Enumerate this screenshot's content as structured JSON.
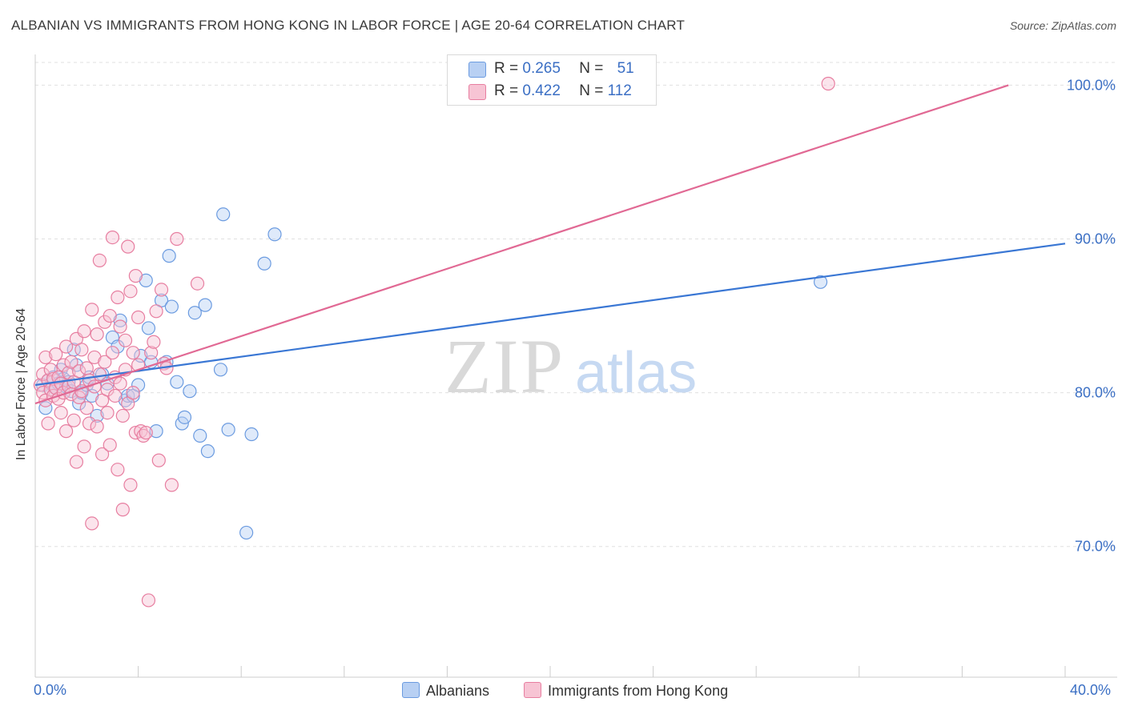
{
  "title": "ALBANIAN VS IMMIGRANTS FROM HONG KONG IN LABOR FORCE | AGE 20-64 CORRELATION CHART",
  "source": "Source: ZipAtlas.com",
  "watermark_zip": "ZIP",
  "watermark_atlas": "atlas",
  "legend": {
    "albanians": {
      "r_label": "R = ",
      "r": "0.265",
      "n_label": "N = ",
      "n": "51",
      "color": "#6b9be0",
      "fill": "#b8d0f3"
    },
    "hongkong": {
      "r_label": "R = ",
      "r": "0.422",
      "n_label": "N = ",
      "n": "112",
      "color": "#e77ea0",
      "fill": "#f7c4d4"
    }
  },
  "bottom_legend": {
    "albanians": "Albanians",
    "hongkong": "Immigrants from Hong Kong"
  },
  "chart_data": {
    "type": "scatter",
    "title": "ALBANIAN VS IMMIGRANTS FROM HONG KONG IN LABOR FORCE | AGE 20-64 CORRELATION CHART",
    "xlabel": "",
    "ylabel": "In Labor Force | Age 20-64",
    "xlim": [
      0,
      40
    ],
    "ylim": [
      61.5,
      102
    ],
    "x_tick_labels": [
      "0.0%",
      "40.0%"
    ],
    "y_ticks": [
      70,
      80,
      90,
      100
    ],
    "y_tick_labels": [
      "70.0%",
      "80.0%",
      "90.0%",
      "100.0%"
    ],
    "series": [
      {
        "name": "Albanians",
        "color": "#3a77d4",
        "trend": [
          [
            0,
            80.5
          ],
          [
            40,
            89.7
          ]
        ],
        "points": [
          [
            0.3,
            80.5
          ],
          [
            0.4,
            79.0
          ],
          [
            0.5,
            80.8
          ],
          [
            0.6,
            80.2
          ],
          [
            0.7,
            81.0
          ],
          [
            0.8,
            80.3
          ],
          [
            0.9,
            80.6
          ],
          [
            1.0,
            81.5
          ],
          [
            1.1,
            80.9
          ],
          [
            1.2,
            80.4
          ],
          [
            1.3,
            80.7
          ],
          [
            1.4,
            80.1
          ],
          [
            1.5,
            82.8
          ],
          [
            1.6,
            81.8
          ],
          [
            1.7,
            79.3
          ],
          [
            1.8,
            80.0
          ],
          [
            2.0,
            80.5
          ],
          [
            2.1,
            81.0
          ],
          [
            2.2,
            79.8
          ],
          [
            2.4,
            78.5
          ],
          [
            2.6,
            81.2
          ],
          [
            2.8,
            80.6
          ],
          [
            3.0,
            83.6
          ],
          [
            3.2,
            83.0
          ],
          [
            3.3,
            84.7
          ],
          [
            3.5,
            79.5
          ],
          [
            3.6,
            79.8
          ],
          [
            3.8,
            79.8
          ],
          [
            4.0,
            80.5
          ],
          [
            4.1,
            82.4
          ],
          [
            4.3,
            87.3
          ],
          [
            4.4,
            84.2
          ],
          [
            4.5,
            82.0
          ],
          [
            4.7,
            77.5
          ],
          [
            4.9,
            86.0
          ],
          [
            5.1,
            82.0
          ],
          [
            5.2,
            88.9
          ],
          [
            5.3,
            85.6
          ],
          [
            5.5,
            80.7
          ],
          [
            5.7,
            78.0
          ],
          [
            5.8,
            78.4
          ],
          [
            6.0,
            80.1
          ],
          [
            6.2,
            85.2
          ],
          [
            6.4,
            77.2
          ],
          [
            6.6,
            85.7
          ],
          [
            6.7,
            76.2
          ],
          [
            7.2,
            81.5
          ],
          [
            7.3,
            91.6
          ],
          [
            7.5,
            77.6
          ],
          [
            8.2,
            70.9
          ],
          [
            8.4,
            77.3
          ],
          [
            8.9,
            88.4
          ],
          [
            9.3,
            90.3
          ],
          [
            30.5,
            87.2
          ]
        ]
      },
      {
        "name": "Immigrants from Hong Kong",
        "color": "#e16994",
        "trend": [
          [
            0,
            79.3
          ],
          [
            37.8,
            100
          ]
        ],
        "points": [
          [
            0.2,
            80.5
          ],
          [
            0.3,
            80.0
          ],
          [
            0.3,
            81.2
          ],
          [
            0.4,
            79.5
          ],
          [
            0.4,
            82.3
          ],
          [
            0.5,
            80.8
          ],
          [
            0.5,
            78.0
          ],
          [
            0.6,
            81.5
          ],
          [
            0.6,
            80.2
          ],
          [
            0.7,
            79.8
          ],
          [
            0.7,
            80.9
          ],
          [
            0.8,
            82.5
          ],
          [
            0.8,
            80.3
          ],
          [
            0.9,
            81.0
          ],
          [
            0.9,
            79.6
          ],
          [
            1.0,
            80.6
          ],
          [
            1.0,
            78.7
          ],
          [
            1.1,
            81.8
          ],
          [
            1.1,
            80.0
          ],
          [
            1.2,
            77.5
          ],
          [
            1.2,
            83.0
          ],
          [
            1.3,
            80.4
          ],
          [
            1.3,
            81.3
          ],
          [
            1.4,
            79.9
          ],
          [
            1.4,
            82.0
          ],
          [
            1.5,
            80.7
          ],
          [
            1.5,
            78.2
          ],
          [
            1.6,
            83.5
          ],
          [
            1.6,
            75.5
          ],
          [
            1.7,
            81.4
          ],
          [
            1.7,
            79.7
          ],
          [
            1.8,
            82.8
          ],
          [
            1.8,
            80.1
          ],
          [
            1.9,
            76.5
          ],
          [
            1.9,
            84.0
          ],
          [
            2.0,
            81.6
          ],
          [
            2.0,
            79.0
          ],
          [
            2.1,
            80.8
          ],
          [
            2.1,
            78.0
          ],
          [
            2.2,
            85.4
          ],
          [
            2.2,
            71.5
          ],
          [
            2.3,
            82.3
          ],
          [
            2.3,
            80.4
          ],
          [
            2.4,
            83.8
          ],
          [
            2.4,
            77.8
          ],
          [
            2.5,
            88.6
          ],
          [
            2.5,
            81.2
          ],
          [
            2.6,
            79.5
          ],
          [
            2.6,
            76.0
          ],
          [
            2.7,
            84.6
          ],
          [
            2.7,
            82.0
          ],
          [
            2.8,
            80.2
          ],
          [
            2.8,
            78.7
          ],
          [
            2.9,
            85.0
          ],
          [
            2.9,
            76.6
          ],
          [
            3.0,
            90.1
          ],
          [
            3.0,
            82.6
          ],
          [
            3.1,
            81.0
          ],
          [
            3.1,
            79.8
          ],
          [
            3.2,
            86.2
          ],
          [
            3.2,
            75.0
          ],
          [
            3.3,
            84.3
          ],
          [
            3.3,
            80.6
          ],
          [
            3.4,
            78.5
          ],
          [
            3.4,
            72.4
          ],
          [
            3.5,
            83.4
          ],
          [
            3.5,
            81.5
          ],
          [
            3.6,
            89.5
          ],
          [
            3.6,
            79.3
          ],
          [
            3.7,
            86.6
          ],
          [
            3.7,
            74.0
          ],
          [
            3.8,
            82.6
          ],
          [
            3.8,
            80.0
          ],
          [
            3.9,
            87.6
          ],
          [
            3.9,
            77.4
          ],
          [
            4.0,
            84.9
          ],
          [
            4.0,
            81.8
          ],
          [
            4.1,
            77.5
          ],
          [
            4.2,
            77.2
          ],
          [
            4.3,
            77.4
          ],
          [
            4.4,
            66.5
          ],
          [
            4.5,
            82.6
          ],
          [
            4.6,
            83.3
          ],
          [
            4.7,
            85.3
          ],
          [
            4.8,
            75.6
          ],
          [
            4.9,
            86.7
          ],
          [
            5.0,
            81.9
          ],
          [
            5.1,
            81.6
          ],
          [
            5.3,
            74.0
          ],
          [
            5.5,
            90.0
          ],
          [
            6.3,
            87.1
          ],
          [
            30.8,
            100.1
          ]
        ]
      }
    ]
  }
}
